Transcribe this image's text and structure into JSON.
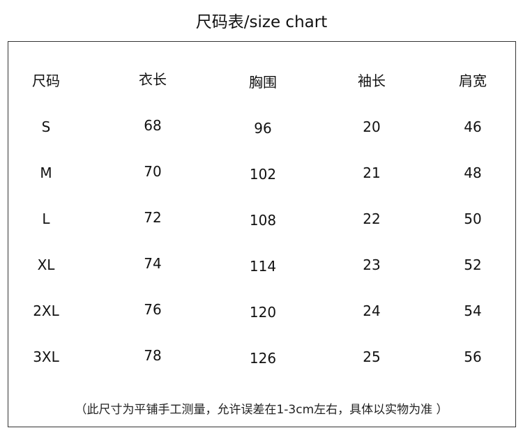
{
  "title": "尺码表/size chart",
  "headers": [
    "尺码",
    "衣长",
    "胸围",
    "袖长",
    "肩宽"
  ],
  "rows": [
    [
      "S",
      "68",
      "96",
      "20",
      "46"
    ],
    [
      "M",
      "70",
      "102",
      "21",
      "48"
    ],
    [
      "L",
      "72",
      "108",
      "22",
      "50"
    ],
    [
      "XL",
      "74",
      "114",
      "23",
      "52"
    ],
    [
      "2XL",
      "76",
      "120",
      "24",
      "54"
    ],
    [
      "3XL",
      "78",
      "126",
      "25",
      "56"
    ]
  ],
  "note": "（此尺寸为平铺手工测量，允许误差在1-3cm左右，具体以实物为准 ）"
}
